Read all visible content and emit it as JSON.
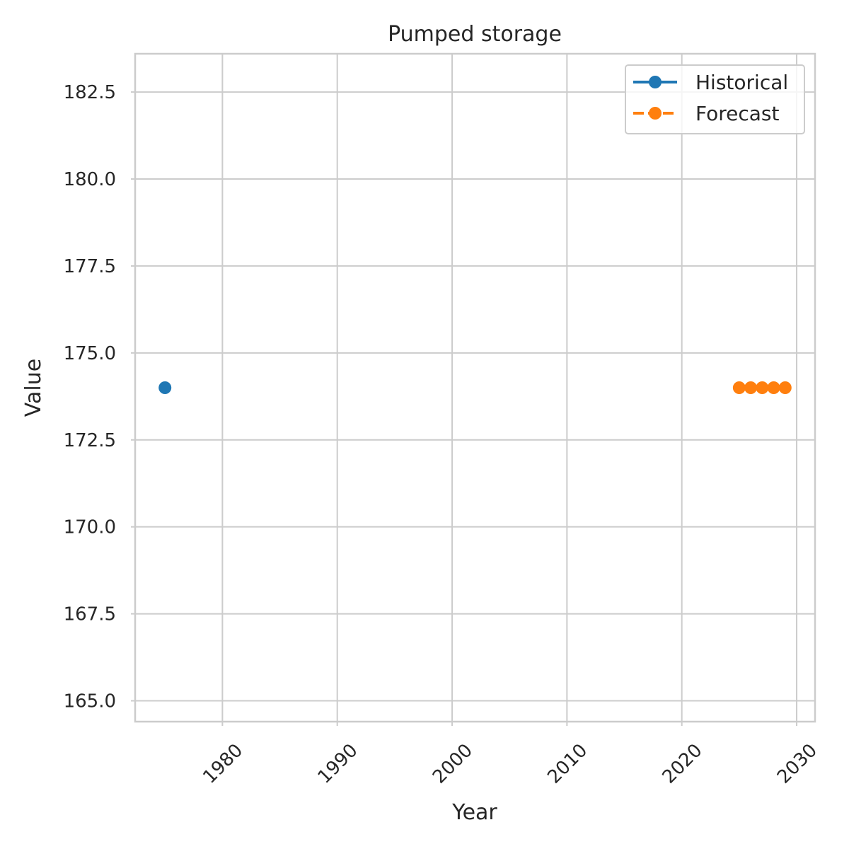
{
  "chart_data": {
    "type": "line",
    "title": "Pumped storage",
    "xlabel": "Year",
    "ylabel": "Value",
    "xlim": [
      1972.4,
      2031.6
    ],
    "ylim": [
      164.4,
      183.6
    ],
    "xticks": [
      1980,
      1990,
      2000,
      2010,
      2020,
      2030
    ],
    "yticks": [
      165.0,
      167.5,
      170.0,
      172.5,
      175.0,
      177.5,
      180.0,
      182.5
    ],
    "xtick_labels": [
      "1980",
      "1990",
      "2000",
      "2010",
      "2020",
      "2030"
    ],
    "ytick_labels": [
      "165.0",
      "167.5",
      "170.0",
      "172.5",
      "175.0",
      "177.5",
      "180.0",
      "182.5"
    ],
    "grid": true,
    "legend_position": "top-right",
    "series": [
      {
        "name": "Historical",
        "color": "#1f77b4",
        "style": "solid",
        "marker": "circle",
        "x": [
          1975
        ],
        "y": [
          174.0
        ]
      },
      {
        "name": "Forecast",
        "color": "#ff7f0e",
        "style": "dashed",
        "marker": "circle",
        "x": [
          2025,
          2026,
          2027,
          2028,
          2029
        ],
        "y": [
          174.0,
          174.0,
          174.0,
          174.0,
          174.0
        ]
      }
    ]
  }
}
